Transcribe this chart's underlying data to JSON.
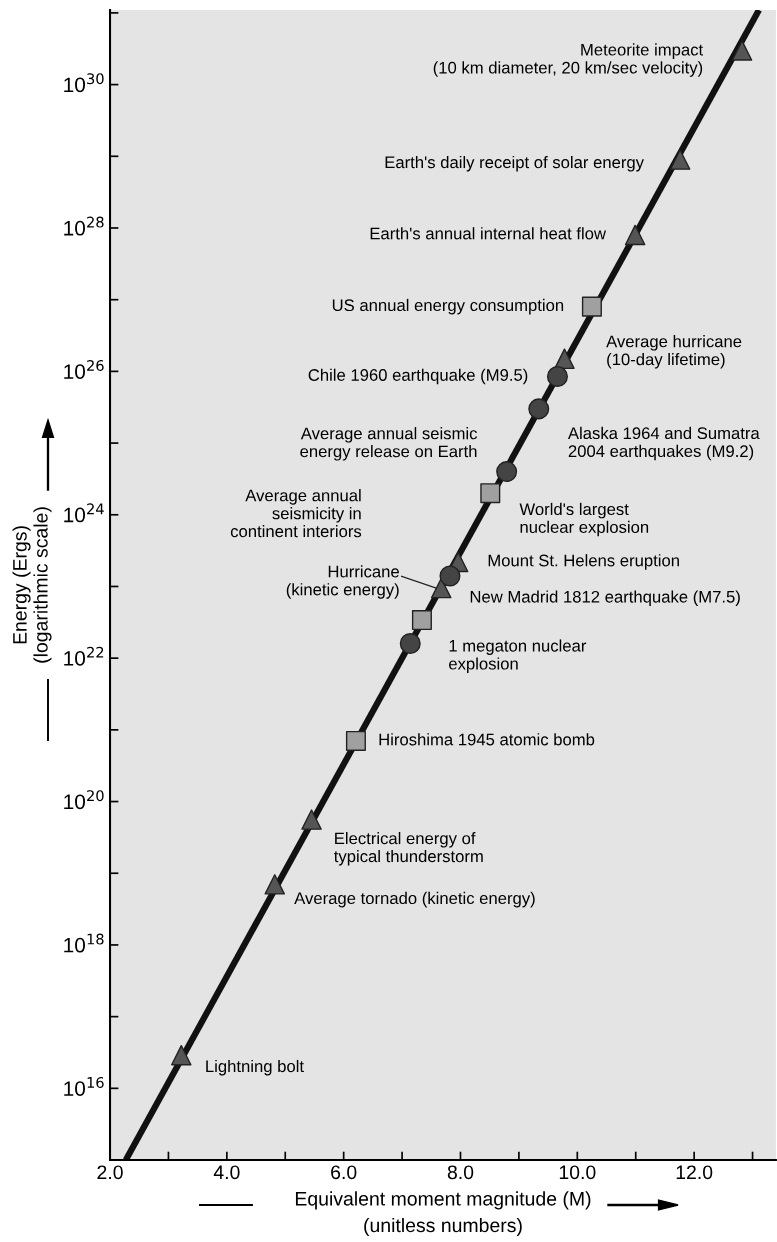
{
  "chart_data": {
    "type": "scatter",
    "xlabel": "Equivalent moment magnitude (M)\n(unitless numbers)",
    "ylabel": "Energy (Ergs)\n(logarithmic scale)",
    "log": "y",
    "xlim": [
      2.0,
      13.4
    ],
    "ylim": [
      1000000000000000.0,
      1.1e+31
    ],
    "xticks": [
      {
        "value": 2,
        "label": "2.0"
      },
      {
        "value": 3,
        "label": null
      },
      {
        "value": 4,
        "label": "4.0"
      },
      {
        "value": 5,
        "label": null
      },
      {
        "value": 6,
        "label": "6.0"
      },
      {
        "value": 7,
        "label": null
      },
      {
        "value": 8,
        "label": "8.0"
      },
      {
        "value": 9,
        "label": null
      },
      {
        "value": 10,
        "label": "10.0"
      },
      {
        "value": 11,
        "label": null
      },
      {
        "value": 12,
        "label": "12.0"
      },
      {
        "value": 13,
        "label": null
      }
    ],
    "yticks": [
      {
        "value": 1e+16,
        "label": "10$^{16}$"
      },
      {
        "value": 1e+17,
        "label": null
      },
      {
        "value": 1e+18,
        "label": "10$^{18}$"
      },
      {
        "value": 1e+19,
        "label": null
      },
      {
        "value": 1e+20,
        "label": "10$^{20}$"
      },
      {
        "value": 1e+21,
        "label": null
      },
      {
        "value": 1e+22,
        "label": "10$^{22}$"
      },
      {
        "value": 1e+23,
        "label": null
      },
      {
        "value": 1e+24,
        "label": "10$^{24}$"
      },
      {
        "value": 1e+25,
        "label": null
      },
      {
        "value": 1e+26,
        "label": "10$^{26}$"
      },
      {
        "value": 1e+27,
        "label": null
      },
      {
        "value": 1e+28,
        "label": "10$^{28}$"
      },
      {
        "value": 1e+29,
        "label": null
      },
      {
        "value": 1e+30,
        "label": "10$^{30}$"
      },
      {
        "value": 1e+31,
        "label": null
      }
    ],
    "grid": false,
    "series": [
      {
        "type": "line",
        "color": "#111111",
        "marker": "none",
        "x": [
          2.27,
          13.11
        ],
        "values": [
          1000000000000000.0,
          1.1e+31
        ]
      },
      {
        "color": "#555555",
        "marker": "triangle",
        "x": [
          12.82,
          11.76,
          10.99,
          9.78,
          7.96,
          7.67,
          5.45,
          4.82,
          3.22
        ],
        "values": [
          3e+30,
          9e+28,
          8e+27,
          1.5e+26,
          2.2e+23,
          9.5e+22,
          5.6e+19,
          7e+18,
          2.9e+16
        ]
      },
      {
        "color": "#444444",
        "marker": "circle",
        "x": [
          9.66,
          9.34,
          8.79,
          7.82,
          7.14
        ],
        "values": [
          8.5e+25,
          3e+25,
          4e+24,
          1.4e+23,
          1.6e+22
        ]
      },
      {
        "color": "#a0a0a0",
        "marker": "square",
        "x": [
          10.25,
          8.51,
          7.34,
          6.21
        ],
        "values": [
          8e+26,
          2e+24,
          3.4e+22,
          7e+20
        ]
      }
    ],
    "annotations": [
      {
        "text": "Meteorite impact\n(10 km diameter, 20 km/sec velocity)",
        "x": 12.82,
        "y": 3e+30
      },
      {
        "text": "Earth's daily receipt of solar energy",
        "x": 11.76,
        "y": 9e+28
      },
      {
        "text": "Earth's annual internal heat flow",
        "x": 10.99,
        "y": 8e+27
      },
      {
        "text": "US annual energy consumption",
        "x": 10.25,
        "y": 8e+26
      },
      {
        "text": "Average hurricane\n(10-day lifetime)",
        "x": 9.78,
        "y": 1.5e+26
      },
      {
        "text": "Chile 1960 earthquake (M9.5)",
        "x": 9.66,
        "y": 8.5e+25
      },
      {
        "text": "Alaska 1964 and Sumatra\n2004 earthquakes (M9.2)",
        "x": 9.34,
        "y": 3e+25
      },
      {
        "text": "Average annual seismic\nenergy release on Earth",
        "x": 8.79,
        "y": 4e+24
      },
      {
        "text": "World's largest\nnuclear explosion",
        "x": 8.51,
        "y": 2e+24
      },
      {
        "text": "Mount St. Helens eruption",
        "x": 7.96,
        "y": 2.2e+23
      },
      {
        "text": "New Madrid 1812 earthquake (M7.5)",
        "x": 7.82,
        "y": 1.4e+23
      },
      "Hurricane\n(kinetic energy)",
      {
        "text": "1 megaton nuclear\nexplosion",
        "x": 7.34,
        "y": 3.4e+22
      },
      "Average annual\nseismicity in\ncontinent interiors",
      {
        "text": "Hiroshima 1945 atomic bomb",
        "x": 6.21,
        "y": 7e+20
      },
      {
        "text": "Electrical energy of\ntypical thunderstorm",
        "x": 5.45,
        "y": 5.6e+19
      },
      {
        "text": "Average tornado (kinetic energy)",
        "x": 4.82,
        "y": 7e+18
      },
      {
        "text": "Lightning bolt",
        "x": 3.22,
        "y": 2.9e+16
      }
    ]
  }
}
